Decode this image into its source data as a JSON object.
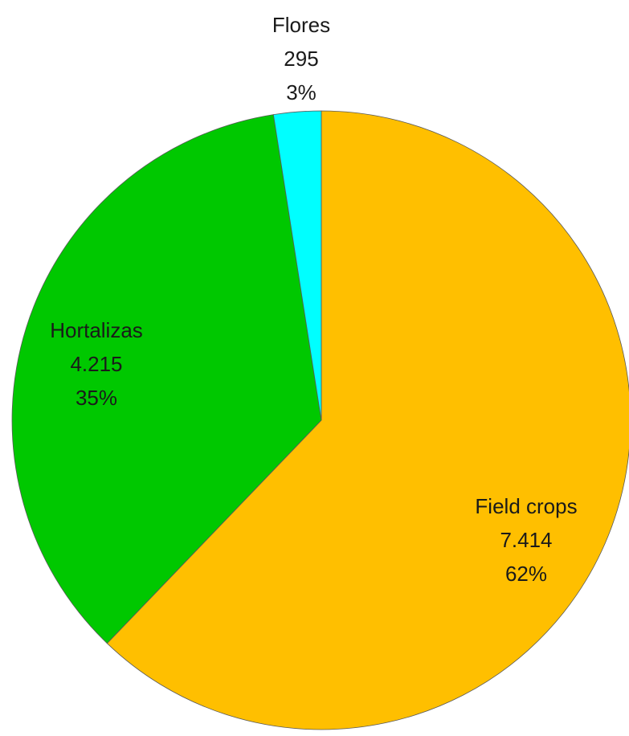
{
  "chart_data": {
    "type": "pie",
    "categories": [
      "Field crops",
      "Hortalizas",
      "Flores"
    ],
    "values": [
      7414,
      4215,
      295
    ],
    "value_labels": [
      "7.414",
      "4.215",
      "295"
    ],
    "percentages": [
      62,
      35,
      3
    ],
    "percentage_labels": [
      "62%",
      "35%",
      "3%"
    ],
    "colors": [
      "#ffbf00",
      "#00c800",
      "#00ffff"
    ]
  }
}
